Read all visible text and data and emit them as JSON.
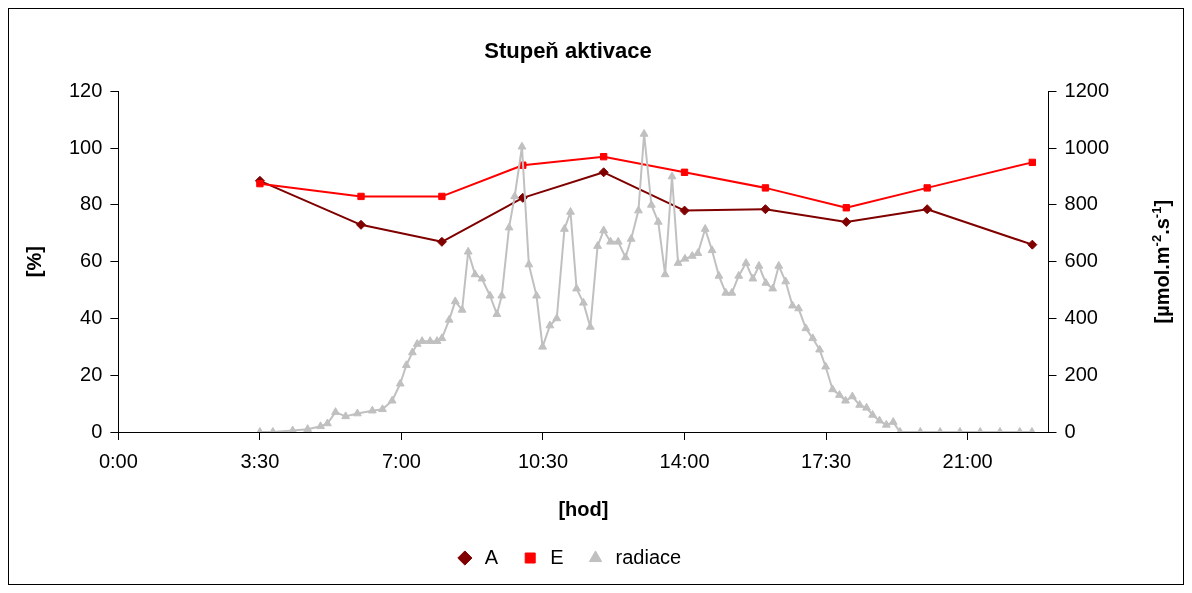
{
  "chart_data": {
    "type": "line",
    "title": "Stupeň aktivace",
    "xlabel": "[hod]",
    "ylabel": "[%]",
    "y2label": "[µmol.m$^{-2}$.s$^{-1}$]",
    "xlim": [
      0,
      23
    ],
    "xticks": [
      {
        "value": 0,
        "label": "0:00"
      },
      {
        "value": 3.5,
        "label": "3:30"
      },
      {
        "value": 7,
        "label": "7:00"
      },
      {
        "value": 10.5,
        "label": "10:30"
      },
      {
        "value": 14,
        "label": "14:00"
      },
      {
        "value": 17.5,
        "label": "17:30"
      },
      {
        "value": 21,
        "label": "21:00"
      }
    ],
    "ylim": [
      0,
      120
    ],
    "yticks": [
      0,
      20,
      40,
      60,
      80,
      100,
      120
    ],
    "y2lim": [
      0,
      1200
    ],
    "y2ticks": [
      0,
      200,
      400,
      600,
      800,
      1000,
      1200
    ],
    "grid": false,
    "legend": "bottom",
    "line_style": "solid",
    "series": [
      {
        "name": "A",
        "color": "#800000",
        "marker": "diamond",
        "x": [
          3.5,
          6,
          8,
          10,
          12,
          14,
          16,
          18,
          20,
          22.6
        ],
        "values": [
          88.5,
          73,
          67,
          82.5,
          91.5,
          78,
          78.5,
          74,
          78.5,
          66
        ]
      },
      {
        "name": "E",
        "color": "#ff0000",
        "marker": "square",
        "x": [
          3.5,
          6,
          8,
          10,
          12,
          14,
          16,
          18,
          20,
          22.6
        ],
        "values": [
          87.5,
          83,
          83,
          94,
          97,
          91.5,
          86,
          79,
          86,
          95
        ]
      },
      {
        "name": "radiace",
        "color": "#c0c0c0",
        "marker": "triangle",
        "axis": "y2",
        "x": [
          3.5,
          3.82,
          4.31,
          4.68,
          5,
          5.17,
          5.37,
          5.62,
          5.91,
          6.28,
          6.53,
          6.77,
          6.97,
          7.12,
          7.27,
          7.39,
          7.51,
          7.71,
          7.88,
          8,
          8.18,
          8.33,
          8.5,
          8.65,
          8.82,
          8.99,
          9.19,
          9.36,
          9.48,
          9.66,
          9.8,
          9.98,
          10.15,
          10.34,
          10.49,
          10.67,
          10.84,
          11.03,
          11.18,
          11.33,
          11.5,
          11.67,
          11.85,
          12,
          12.17,
          12.36,
          12.54,
          12.68,
          12.86,
          13,
          13.18,
          13.35,
          13.52,
          13.69,
          13.84,
          14.01,
          14.19,
          14.33,
          14.51,
          14.68,
          14.85,
          15.02,
          15.17,
          15.34,
          15.52,
          15.69,
          15.84,
          16.01,
          16.18,
          16.33,
          16.5,
          16.67,
          16.82,
          17,
          17.17,
          17.34,
          17.49,
          17.66,
          17.83,
          17.98,
          18.15,
          18.33,
          18.5,
          18.65,
          18.82,
          18.99,
          19.16,
          19.33,
          19.83,
          20.32,
          20.81,
          21.31,
          21.8,
          22.29,
          22.59
        ],
        "values": [
          0,
          0,
          5,
          10,
          20,
          30,
          70,
          55,
          65,
          75,
          80,
          110,
          170,
          235,
          280,
          310,
          320,
          320,
          320,
          330,
          395,
          460,
          430,
          635,
          555,
          540,
          480,
          415,
          480,
          720,
          830,
          1005,
          590,
          480,
          300,
          375,
          400,
          715,
          775,
          505,
          455,
          370,
          655,
          710,
          670,
          670,
          615,
          680,
          780,
          1050,
          800,
          740,
          555,
          900,
          595,
          610,
          620,
          630,
          715,
          640,
          550,
          490,
          490,
          550,
          595,
          540,
          585,
          525,
          505,
          585,
          530,
          445,
          435,
          365,
          330,
          290,
          230,
          150,
          130,
          110,
          125,
          95,
          85,
          60,
          40,
          25,
          35,
          0,
          0,
          0,
          0,
          0,
          0,
          0,
          0
        ]
      }
    ]
  }
}
